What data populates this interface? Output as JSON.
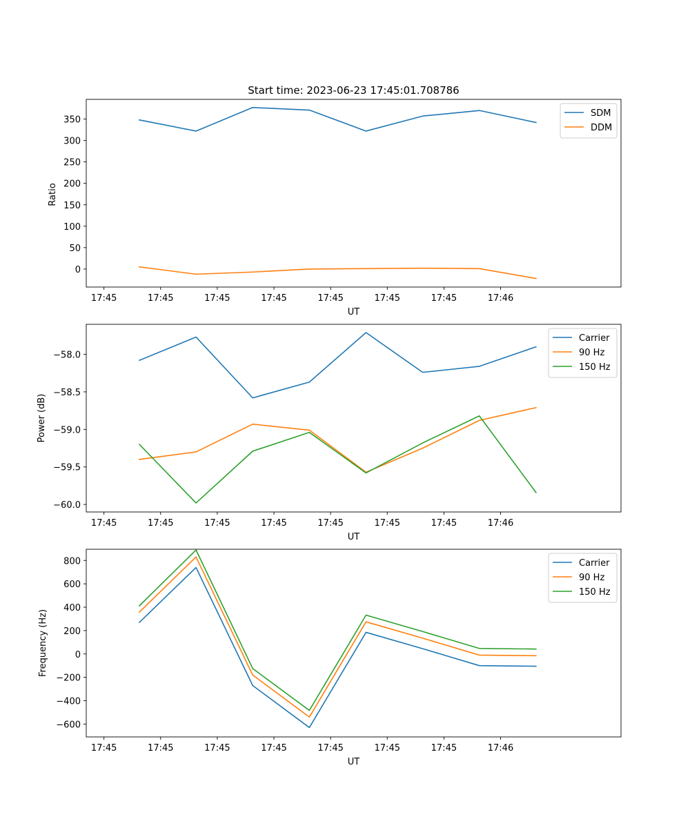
{
  "chart_data": [
    {
      "type": "line",
      "title": "Start time: 2023-06-23 17:45:01.708786",
      "xlabel": "UT",
      "ylabel": "Ratio",
      "xticks": [
        "17:45",
        "17:45",
        "17:45",
        "17:45",
        "17:45",
        "17:45",
        "17:45",
        "17:46"
      ],
      "xlim": [
        -0.15,
        1.36
      ],
      "ylim": [
        -42,
        396
      ],
      "yticks": [
        0,
        50,
        100,
        150,
        200,
        250,
        300,
        350
      ],
      "ytick_labels": [
        "0",
        "50",
        "100",
        "150",
        "200",
        "250",
        "300",
        "350"
      ],
      "x": [
        0.0,
        0.16,
        0.32,
        0.48,
        0.64,
        0.8,
        0.96,
        1.12
      ],
      "legend_position": "top-right",
      "grid": false,
      "series": [
        {
          "name": "SDM",
          "color": "#1f77b4",
          "values": [
            348,
            322,
            377,
            371,
            322,
            357,
            370,
            342
          ]
        },
        {
          "name": "DDM",
          "color": "#ff7f0e",
          "values": [
            5,
            -12,
            -7,
            0,
            1,
            2,
            1,
            -22
          ]
        }
      ]
    },
    {
      "type": "line",
      "title": "",
      "xlabel": "UT",
      "ylabel": "Power (dB)",
      "xticks": [
        "17:45",
        "17:45",
        "17:45",
        "17:45",
        "17:45",
        "17:45",
        "17:45",
        "17:46"
      ],
      "xlim": [
        -0.15,
        1.36
      ],
      "ylim": [
        -60.1,
        -57.6
      ],
      "yticks": [
        -60.0,
        -59.5,
        -59.0,
        -58.5,
        -58.0
      ],
      "ytick_labels": [
        "−60.0",
        "−59.5",
        "−59.0",
        "−58.5",
        "−58.0"
      ],
      "x": [
        0.0,
        0.16,
        0.32,
        0.48,
        0.64,
        0.8,
        0.96,
        1.12
      ],
      "legend_position": "top-right",
      "grid": false,
      "series": [
        {
          "name": "Carrier",
          "color": "#1f77b4",
          "values": [
            -58.08,
            -57.77,
            -58.58,
            -58.37,
            -57.71,
            -58.24,
            -58.16,
            -57.9
          ]
        },
        {
          "name": "90 Hz",
          "color": "#ff7f0e",
          "values": [
            -59.4,
            -59.3,
            -58.93,
            -59.01,
            -59.57,
            -59.25,
            -58.88,
            -58.71
          ]
        },
        {
          "name": "150 Hz",
          "color": "#2ca02c",
          "values": [
            -59.2,
            -59.98,
            -59.29,
            -59.04,
            -59.58,
            -59.18,
            -58.82,
            -59.84
          ]
        }
      ]
    },
    {
      "type": "line",
      "title": "",
      "xlabel": "UT",
      "ylabel": "Frequency (Hz)",
      "xticks": [
        "17:45",
        "17:45",
        "17:45",
        "17:45",
        "17:45",
        "17:45",
        "17:45",
        "17:46"
      ],
      "xlim": [
        -0.15,
        1.36
      ],
      "ylim": [
        -710,
        896
      ],
      "yticks": [
        -600,
        -400,
        -200,
        0,
        200,
        400,
        600,
        800
      ],
      "ytick_labels": [
        "−600",
        "−400",
        "−200",
        "0",
        "200",
        "400",
        "600",
        "800"
      ],
      "x": [
        0.0,
        0.16,
        0.32,
        0.48,
        0.64,
        0.8,
        0.96,
        1.12
      ],
      "legend_position": "top-right",
      "grid": false,
      "series": [
        {
          "name": "Carrier",
          "color": "#1f77b4",
          "values": [
            270,
            740,
            -270,
            -630,
            185,
            45,
            -100,
            -105
          ]
        },
        {
          "name": "90 Hz",
          "color": "#ff7f0e",
          "values": [
            358,
            830,
            -180,
            -540,
            275,
            135,
            -10,
            -15
          ]
        },
        {
          "name": "150 Hz",
          "color": "#2ca02c",
          "values": [
            412,
            890,
            -125,
            -483,
            332,
            192,
            47,
            42
          ]
        }
      ]
    }
  ]
}
